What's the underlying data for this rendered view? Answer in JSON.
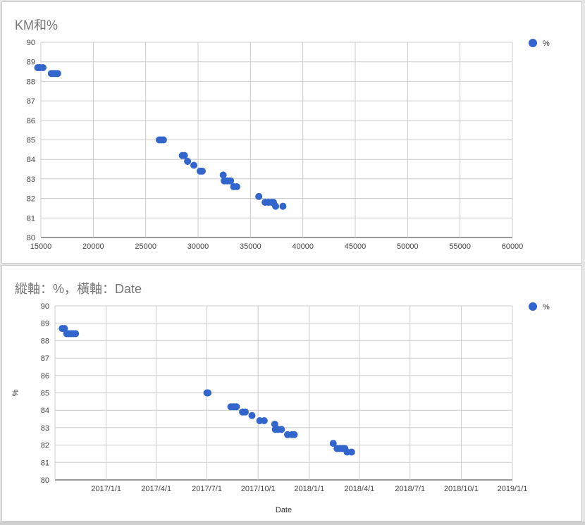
{
  "chart_data": [
    {
      "type": "scatter",
      "title": "KM和%",
      "xlabel": "",
      "ylabel": "",
      "xlim": [
        15000,
        60000
      ],
      "ylim": [
        80,
        90
      ],
      "x_ticks": [
        "15000",
        "20000",
        "25000",
        "30000",
        "35000",
        "40000",
        "45000",
        "50000",
        "55000",
        "60000"
      ],
      "y_ticks": [
        "80",
        "81",
        "82",
        "83",
        "84",
        "85",
        "86",
        "87",
        "88",
        "89",
        "90"
      ],
      "grid": true,
      "legend_position": "top-right",
      "color": "#3366cc",
      "series": [
        {
          "name": "%",
          "points": [
            [
              14700,
              88.7
            ],
            [
              14900,
              88.7
            ],
            [
              15200,
              88.7
            ],
            [
              16000,
              88.4
            ],
            [
              16200,
              88.4
            ],
            [
              16400,
              88.4
            ],
            [
              16600,
              88.4
            ],
            [
              26300,
              85.0
            ],
            [
              26500,
              85.0
            ],
            [
              26700,
              85.0
            ],
            [
              28500,
              84.2
            ],
            [
              28700,
              84.2
            ],
            [
              29000,
              83.9
            ],
            [
              29600,
              83.7
            ],
            [
              30200,
              83.4
            ],
            [
              30400,
              83.4
            ],
            [
              32400,
              83.2
            ],
            [
              32500,
              82.9
            ],
            [
              32800,
              82.9
            ],
            [
              33100,
              82.9
            ],
            [
              33400,
              82.6
            ],
            [
              33700,
              82.6
            ],
            [
              35800,
              82.1
            ],
            [
              36400,
              81.8
            ],
            [
              36700,
              81.8
            ],
            [
              37000,
              81.8
            ],
            [
              37200,
              81.8
            ],
            [
              37400,
              81.6
            ],
            [
              38100,
              81.6
            ]
          ]
        }
      ]
    },
    {
      "type": "scatter",
      "title": "縱軸：%，橫軸：Date",
      "xlabel": "Date",
      "ylabel": "%",
      "xlim": [
        "2016-10-01",
        "2019-01-01"
      ],
      "ylim": [
        80,
        90
      ],
      "x_ticks": [
        "2017/1/1",
        "2017/4/1",
        "2017/7/1",
        "2017/10/1",
        "2018/1/1",
        "2018/4/1",
        "2018/7/1",
        "2018/10/1",
        "2019/1/1"
      ],
      "y_ticks": [
        "80",
        "81",
        "82",
        "83",
        "84",
        "85",
        "86",
        "87",
        "88",
        "89",
        "90"
      ],
      "grid": true,
      "legend_position": "top-right",
      "color": "#3366cc",
      "series": [
        {
          "name": "%",
          "points": [
            [
              "2016-10-14",
              88.7
            ],
            [
              "2016-10-18",
              88.7
            ],
            [
              "2016-10-22",
              88.4
            ],
            [
              "2016-10-26",
              88.4
            ],
            [
              "2016-10-30",
              88.4
            ],
            [
              "2016-11-03",
              88.4
            ],
            [
              "2016-11-07",
              88.4
            ],
            [
              "2017-07-01",
              85.0
            ],
            [
              "2017-07-03",
              85.0
            ],
            [
              "2017-08-13",
              84.2
            ],
            [
              "2017-08-18",
              84.2
            ],
            [
              "2017-08-23",
              84.2
            ],
            [
              "2017-09-03",
              83.9
            ],
            [
              "2017-09-08",
              83.9
            ],
            [
              "2017-09-20",
              83.7
            ],
            [
              "2017-10-04",
              83.4
            ],
            [
              "2017-10-12",
              83.4
            ],
            [
              "2017-10-31",
              83.2
            ],
            [
              "2017-11-01",
              82.9
            ],
            [
              "2017-11-06",
              82.9
            ],
            [
              "2017-11-12",
              82.9
            ],
            [
              "2017-11-23",
              82.6
            ],
            [
              "2017-12-01",
              82.6
            ],
            [
              "2017-12-05",
              82.6
            ],
            [
              "2018-02-13",
              82.1
            ],
            [
              "2018-02-20",
              81.8
            ],
            [
              "2018-02-25",
              81.8
            ],
            [
              "2018-03-02",
              81.8
            ],
            [
              "2018-03-06",
              81.8
            ],
            [
              "2018-03-10",
              81.6
            ],
            [
              "2018-03-18",
              81.6
            ]
          ]
        }
      ]
    }
  ]
}
